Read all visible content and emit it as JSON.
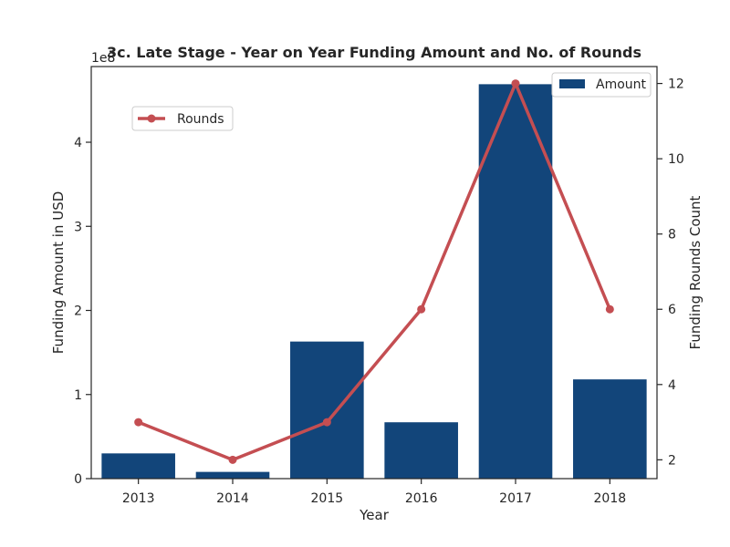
{
  "chart_data": {
    "type": "bar",
    "title": "3c. Late Stage - Year on Year Funding Amount and No. of Rounds",
    "xlabel": "Year",
    "ylabel": "Funding Amount in USD",
    "y2label": "Funding Rounds Count",
    "y_offset_label": "1e8",
    "categories": [
      "2013",
      "2014",
      "2015",
      "2016",
      "2017",
      "2018"
    ],
    "series": [
      {
        "name": "Amount",
        "type": "bar",
        "axis": "left",
        "color": "#12457a",
        "values": [
          30000000,
          8000000,
          163000000,
          67000000,
          469000000,
          118000000
        ]
      },
      {
        "name": "Rounds",
        "type": "line",
        "axis": "right",
        "color": "#c44e52",
        "values": [
          3,
          2,
          3,
          6,
          12,
          6
        ]
      }
    ],
    "ylim": [
      0,
      490000000
    ],
    "y_ticks": [
      0,
      100000000,
      200000000,
      300000000,
      400000000
    ],
    "y_tick_labels": [
      "0",
      "1",
      "2",
      "3",
      "4"
    ],
    "y2lim": [
      1.5,
      12.45
    ],
    "y2_ticks": [
      2,
      4,
      6,
      8,
      10,
      12
    ],
    "y2_tick_labels": [
      "2",
      "4",
      "6",
      "8",
      "10",
      "12"
    ],
    "grid": false,
    "legend_amount_placement": "top-right",
    "legend_rounds_placement": "upper-left"
  }
}
